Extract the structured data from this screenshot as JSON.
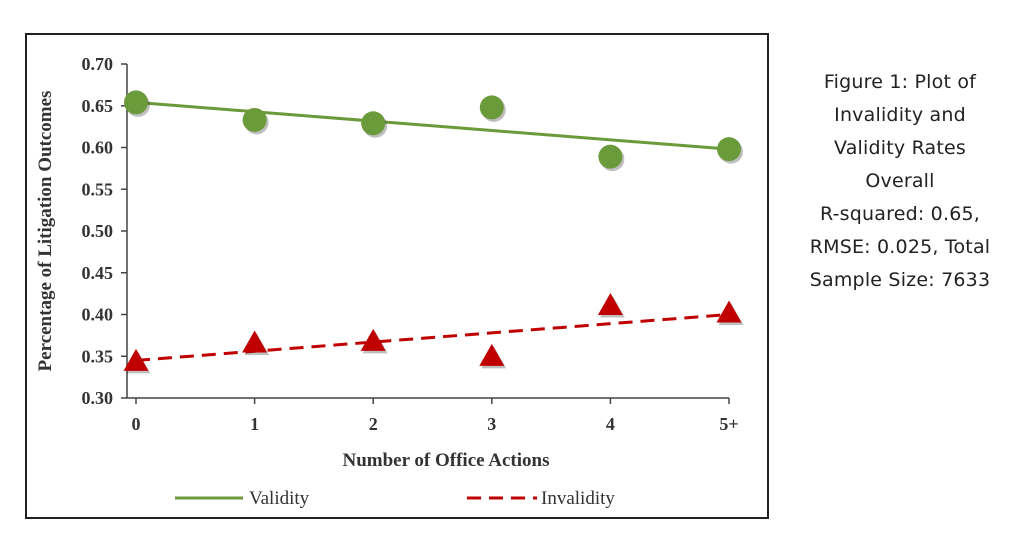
{
  "caption": {
    "lines": [
      "Figure 1: Plot of",
      "Invalidity and",
      "Validity Rates",
      "Overall",
      "R-squared: 0.65,",
      "RMSE: 0.025, Total",
      "Sample Size: 7633"
    ]
  },
  "chart_data": {
    "type": "scatter",
    "xlabel": "Number of Office Actions",
    "ylabel": "Percentage of Litigation Outcomes",
    "categories": [
      "0",
      "1",
      "2",
      "3",
      "4",
      "5+"
    ],
    "ylim": [
      0.3,
      0.7
    ],
    "yticks": [
      "0.30",
      "0.35",
      "0.40",
      "0.45",
      "0.50",
      "0.55",
      "0.60",
      "0.65",
      "0.70"
    ],
    "grid": false,
    "legend_position": "bottom",
    "series": [
      {
        "name": "Validity",
        "marker": "circle",
        "color": "#6a9a3a",
        "values": [
          0.654,
          0.633,
          0.629,
          0.648,
          0.589,
          0.598
        ],
        "trendline": {
          "style": "solid",
          "color": "#6a9a3a",
          "start": 0.654,
          "end": 0.598
        }
      },
      {
        "name": "Invalidity",
        "marker": "triangle",
        "color": "#c00000",
        "values": [
          0.343,
          0.365,
          0.367,
          0.349,
          0.41,
          0.401
        ],
        "trendline": {
          "style": "dashed",
          "color": "#c00000",
          "start": 0.345,
          "end": 0.4
        }
      }
    ]
  }
}
